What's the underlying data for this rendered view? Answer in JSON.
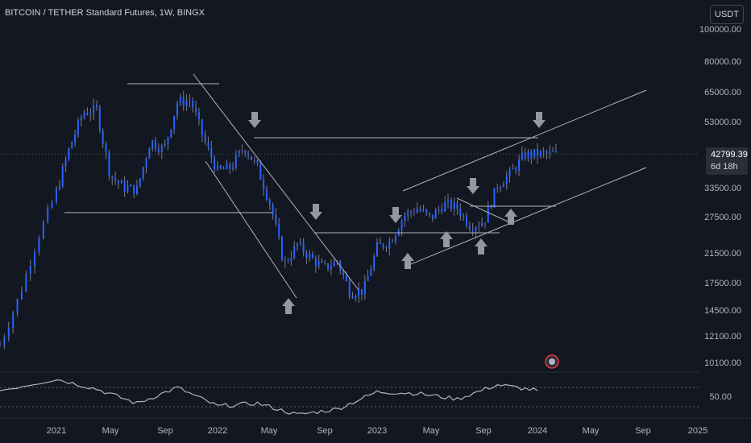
{
  "header": {
    "title": "BITCOIN / TETHER Standard Futures, 1W, BINGX",
    "currency": "USDT"
  },
  "price_axis": {
    "labels": [
      "100000.00",
      "80000.00",
      "65000.00",
      "53000.00",
      "33500.00",
      "27500.00",
      "21500.00",
      "17500.00",
      "14500.00",
      "12100.00",
      "10100.00"
    ],
    "values": [
      100000,
      80000,
      65000,
      53000,
      33500,
      27500,
      21500,
      17500,
      14500,
      12100,
      10100
    ]
  },
  "time_axis": {
    "labels": [
      "2021",
      "May",
      "Sep",
      "2022",
      "May",
      "Sep",
      "2023",
      "May",
      "Sep",
      "2024",
      "May",
      "Sep",
      "2025"
    ]
  },
  "last_price": {
    "value": "42799.39",
    "countdown": "6d 18h"
  },
  "rsi": {
    "label": "50.00"
  },
  "colors": {
    "background": "#131722",
    "candle": "#2962ff",
    "wick": "#787b86",
    "trendline": "#b2b5be",
    "arrow": "#9598a1"
  },
  "chart_data": {
    "type": "candlestick",
    "title": "BITCOIN / TETHER Standard Futures, 1W, BINGX",
    "y_scale": "log",
    "ylim": [
      9500,
      110000
    ],
    "x_range": [
      "2020-09",
      "2025-01"
    ],
    "grid": false,
    "annotations": [
      "trend channel lines",
      "horizontal support/resistance lines",
      "down arrows",
      "up arrows"
    ],
    "price_path": {
      "dates": [
        "2020-10",
        "2020-11",
        "2020-12",
        "2021-01",
        "2021-02",
        "2021-03",
        "2021-04",
        "2021-05",
        "2021-06",
        "2021-07",
        "2021-08",
        "2021-09",
        "2021-10",
        "2021-11",
        "2021-12",
        "2022-01",
        "2022-02",
        "2022-03",
        "2022-04",
        "2022-05",
        "2022-06",
        "2022-07",
        "2022-08",
        "2022-09",
        "2022-10",
        "2022-11",
        "2022-12",
        "2023-01",
        "2023-02",
        "2023-03",
        "2023-04",
        "2023-05",
        "2023-06",
        "2023-07",
        "2023-08",
        "2023-09",
        "2023-10",
        "2023-11",
        "2023-12",
        "2024-01"
      ],
      "values": [
        11500,
        16000,
        24000,
        33000,
        45000,
        57000,
        58000,
        37000,
        34000,
        33500,
        47000,
        44000,
        61000,
        62000,
        47000,
        38000,
        39000,
        45000,
        39000,
        30000,
        20000,
        23000,
        21000,
        19500,
        20500,
        16500,
        16800,
        22500,
        23500,
        28000,
        29500,
        27500,
        30500,
        29500,
        26000,
        27000,
        34500,
        37500,
        42500,
        42799
      ]
    },
    "rsi": {
      "dates": [
        "2020-10",
        "2021-01",
        "2021-04",
        "2021-07",
        "2021-10",
        "2022-01",
        "2022-04",
        "2022-07",
        "2022-10",
        "2023-01",
        "2023-04",
        "2023-07",
        "2023-10",
        "2024-01"
      ],
      "values": [
        62,
        78,
        64,
        44,
        66,
        40,
        44,
        28,
        36,
        60,
        58,
        50,
        70,
        62
      ]
    }
  }
}
